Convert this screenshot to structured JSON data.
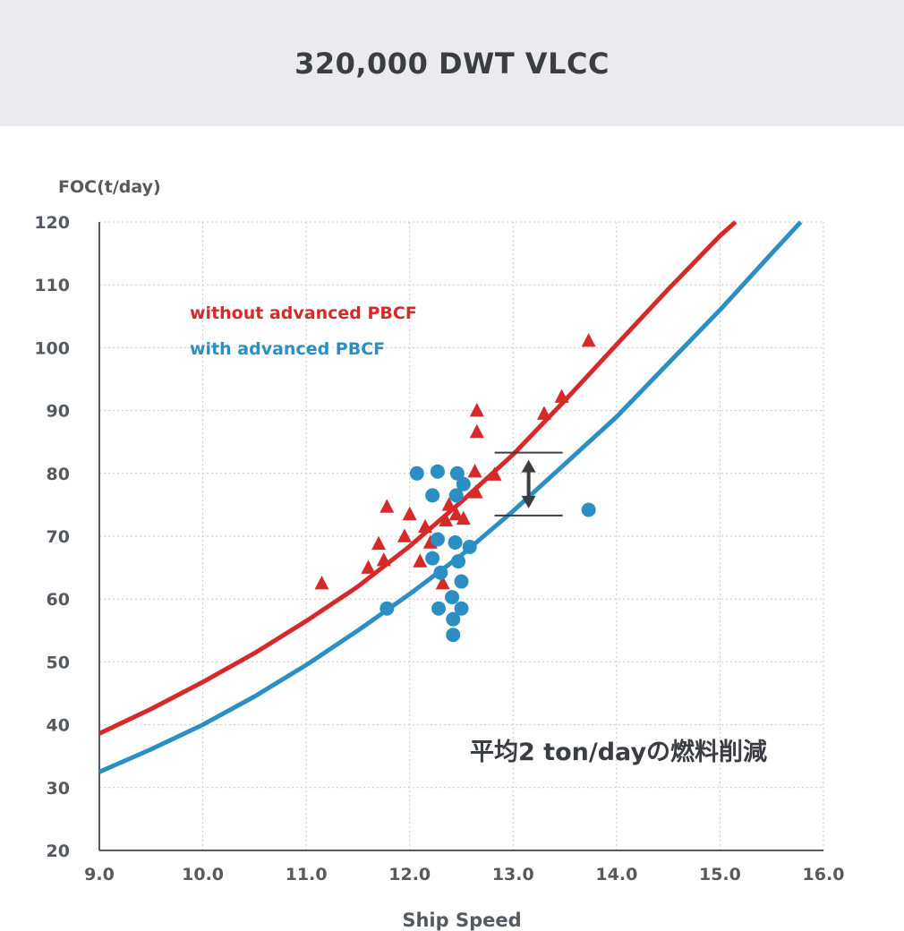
{
  "header": {
    "title": "320,000 DWT VLCC"
  },
  "chart_data": {
    "type": "scatter",
    "ylabel": "FOC(t/day)",
    "xlabel": "Ship Speed",
    "xlim": [
      9.0,
      16.0
    ],
    "ylim": [
      20,
      120
    ],
    "x_ticks": [
      "9.0",
      "10.0",
      "11.0",
      "12.0",
      "13.0",
      "14.0",
      "15.0",
      "16.0"
    ],
    "y_ticks": [
      "20",
      "30",
      "40",
      "50",
      "60",
      "70",
      "80",
      "90",
      "100",
      "110",
      "120"
    ],
    "grid": true,
    "legend_position": "top-left",
    "annotation": "平均2 ton/dayの燃料削減",
    "gap_marker": {
      "x": 13.15,
      "y_top": 83.3,
      "y_bottom": 73.3
    },
    "series": [
      {
        "name": "without advanced PBCF",
        "color": "#d42a2a",
        "marker": "triangle",
        "points": [
          [
            11.15,
            62.5
          ],
          [
            11.6,
            65
          ],
          [
            11.7,
            68.8
          ],
          [
            11.75,
            66.2
          ],
          [
            11.78,
            74.7
          ],
          [
            11.95,
            70
          ],
          [
            12.0,
            73.5
          ],
          [
            12.1,
            66
          ],
          [
            12.15,
            71.5
          ],
          [
            12.2,
            69
          ],
          [
            12.32,
            62.5
          ],
          [
            12.35,
            72.5
          ],
          [
            12.38,
            75
          ],
          [
            12.45,
            73.5
          ],
          [
            12.52,
            72.8
          ],
          [
            12.63,
            80.3
          ],
          [
            12.64,
            77
          ],
          [
            12.65,
            86.6
          ],
          [
            12.65,
            90
          ],
          [
            12.82,
            79.8
          ],
          [
            13.3,
            89.5
          ],
          [
            13.47,
            92.2
          ],
          [
            13.73,
            101.1
          ]
        ],
        "fit_curve": [
          [
            9.0,
            38.6
          ],
          [
            9.5,
            42.5
          ],
          [
            10.0,
            46.8
          ],
          [
            10.5,
            51.4
          ],
          [
            11.0,
            56.5
          ],
          [
            11.5,
            62.0
          ],
          [
            12.0,
            68.4
          ],
          [
            12.5,
            75.5
          ],
          [
            13.0,
            83.0
          ],
          [
            13.5,
            91.6
          ],
          [
            14.0,
            100.5
          ],
          [
            14.5,
            109.3
          ],
          [
            15.0,
            117.8
          ],
          [
            15.15,
            120.0
          ]
        ]
      },
      {
        "name": "with advanced PBCF",
        "color": "#2b8fc4",
        "marker": "circle",
        "points": [
          [
            11.78,
            58.5
          ],
          [
            12.07,
            80
          ],
          [
            12.22,
            76.5
          ],
          [
            12.22,
            66.5
          ],
          [
            12.27,
            69.5
          ],
          [
            12.27,
            80.3
          ],
          [
            12.28,
            58.5
          ],
          [
            12.3,
            64.2
          ],
          [
            12.41,
            60.3
          ],
          [
            12.42,
            54.3
          ],
          [
            12.42,
            56.8
          ],
          [
            12.44,
            69
          ],
          [
            12.45,
            76.5
          ],
          [
            12.46,
            80
          ],
          [
            12.47,
            66
          ],
          [
            12.5,
            62.8
          ],
          [
            12.5,
            58.5
          ],
          [
            12.52,
            78.3
          ],
          [
            12.58,
            68.3
          ],
          [
            13.73,
            74.2
          ]
        ],
        "fit_curve": [
          [
            9.0,
            32.5
          ],
          [
            9.5,
            36.1
          ],
          [
            10.0,
            40.0
          ],
          [
            10.5,
            44.5
          ],
          [
            11.0,
            49.5
          ],
          [
            11.5,
            55.0
          ],
          [
            12.0,
            60.8
          ],
          [
            12.5,
            67.0
          ],
          [
            13.0,
            74.0
          ],
          [
            13.5,
            81.5
          ],
          [
            14.0,
            89.0
          ],
          [
            14.5,
            97.5
          ],
          [
            15.0,
            106.0
          ],
          [
            15.5,
            115.0
          ],
          [
            15.78,
            120.0
          ]
        ]
      }
    ]
  }
}
